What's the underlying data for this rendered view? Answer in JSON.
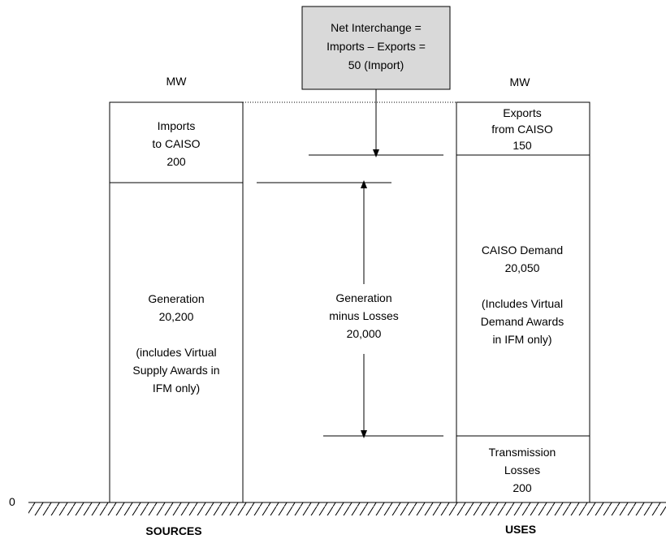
{
  "net_box": {
    "lines": [
      "Net Interchange =",
      "Imports – Exports =",
      "50 (Import)"
    ],
    "fill": "#d9d9d9"
  },
  "unit_left": "MW",
  "unit_right": "MW",
  "zero_label": "0",
  "sources": {
    "imports": [
      "Imports",
      "to CAISO",
      "200"
    ],
    "generation": [
      "Generation",
      "20,200",
      "",
      "(includes Virtual",
      "Supply Awards in",
      "IFM only)"
    ],
    "axis_label": "SOURCES"
  },
  "middle": {
    "gen_minus_losses": [
      "Generation",
      "minus Losses",
      "20,000"
    ]
  },
  "uses": {
    "exports": [
      "Exports",
      "from CAISO",
      "150"
    ],
    "demand": [
      "CAISO Demand",
      "20,050",
      "",
      "(Includes Virtual",
      "Demand Awards",
      "in IFM only)"
    ],
    "losses": [
      "Transmission",
      "Losses",
      "200"
    ],
    "axis_label": "USES"
  }
}
